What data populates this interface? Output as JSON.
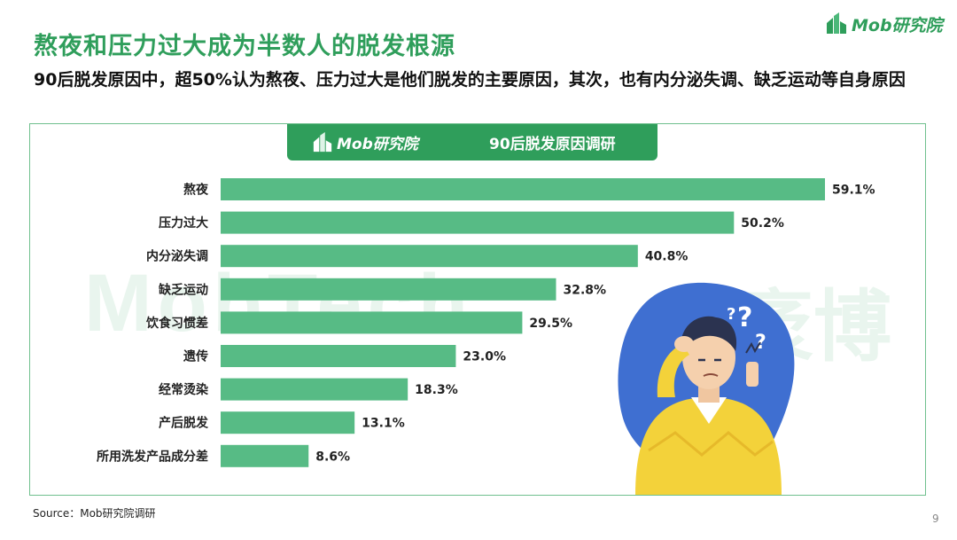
{
  "header": {
    "title": "熬夜和压力过大成为半数人的脱发根源",
    "subtitle": "90后脱发原因中，超50%认为熬夜、压力过大是他们脱发的主要原因，其次，也有内分泌失调、缺乏运动等自身原因"
  },
  "logo": {
    "text": "Mob研究院"
  },
  "watermark": {
    "left": "MobTech",
    "right": "袤博"
  },
  "banner": {
    "logo_text": "Mob研究院",
    "title": "90后脱发原因调研"
  },
  "chart_data": {
    "type": "bar",
    "orientation": "horizontal",
    "title": "90后脱发原因调研",
    "categories": [
      "熬夜",
      "压力过大",
      "内分泌失调",
      "缺乏运动",
      "饮食习惯差",
      "遗传",
      "经常烫染",
      "产后脱发",
      "所用洗发产品成分差"
    ],
    "values": [
      59.1,
      50.2,
      40.8,
      32.8,
      29.5,
      23.0,
      18.3,
      13.1,
      8.6
    ],
    "labels": [
      "59.1%",
      "50.2%",
      "40.8%",
      "32.8%",
      "29.5%",
      "23.0%",
      "18.3%",
      "13.1%",
      "8.6%"
    ],
    "xlim": [
      0,
      59.1
    ],
    "unit": "%",
    "grid": false,
    "legend": "none",
    "bar_color": "#57bb85"
  },
  "footer": {
    "source": "Source：Mob研究院调研",
    "page": "9"
  },
  "colors": {
    "accent": "#2f9e5b",
    "bar": "#57bb85",
    "frame": "#6fc08e",
    "blob": "#3f6fd1",
    "sweater": "#f3d23a"
  }
}
